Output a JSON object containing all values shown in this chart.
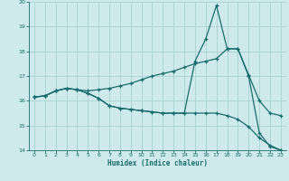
{
  "bg_color": "#ceeaec",
  "grid_color": "#aed4d6",
  "line_color": "#1a6b6b",
  "xlabel": "Humidex (Indice chaleur)",
  "xlim": [
    -0.5,
    23.5
  ],
  "ylim": [
    14,
    20
  ],
  "yticks": [
    14,
    15,
    16,
    17,
    18,
    19,
    20
  ],
  "xticks": [
    0,
    1,
    2,
    3,
    4,
    5,
    6,
    7,
    8,
    9,
    10,
    11,
    12,
    13,
    14,
    15,
    16,
    17,
    18,
    19,
    20,
    21,
    22,
    23
  ],
  "series1_x": [
    0,
    1,
    2,
    3,
    4,
    5,
    6,
    7,
    8,
    9,
    10,
    11,
    12,
    13,
    14,
    15,
    16,
    17,
    18,
    19,
    20,
    21,
    22,
    23
  ],
  "series1_y": [
    16.15,
    16.2,
    16.4,
    16.5,
    16.45,
    16.3,
    16.1,
    15.8,
    15.7,
    15.65,
    15.6,
    15.55,
    15.5,
    15.5,
    15.5,
    17.6,
    18.5,
    19.85,
    18.1,
    18.1,
    17.0,
    14.7,
    14.15,
    14.0
  ],
  "series2_x": [
    0,
    1,
    2,
    3,
    4,
    5,
    6,
    7,
    8,
    9,
    10,
    11,
    12,
    13,
    14,
    15,
    16,
    17,
    18,
    19,
    20,
    21,
    22,
    23
  ],
  "series2_y": [
    16.15,
    16.2,
    16.4,
    16.5,
    16.45,
    16.4,
    16.45,
    16.5,
    16.6,
    16.7,
    16.85,
    17.0,
    17.1,
    17.2,
    17.35,
    17.5,
    17.6,
    17.7,
    18.1,
    18.1,
    17.05,
    16.0,
    15.5,
    15.4
  ],
  "series3_x": [
    0,
    1,
    2,
    3,
    4,
    5,
    6,
    7,
    8,
    9,
    10,
    11,
    12,
    13,
    14,
    15,
    16,
    17,
    18,
    19,
    20,
    21,
    22,
    23
  ],
  "series3_y": [
    16.15,
    16.2,
    16.4,
    16.5,
    16.45,
    16.3,
    16.1,
    15.8,
    15.7,
    15.65,
    15.6,
    15.55,
    15.5,
    15.5,
    15.5,
    15.5,
    15.5,
    15.5,
    15.4,
    15.25,
    14.95,
    14.5,
    14.2,
    14.0
  ]
}
